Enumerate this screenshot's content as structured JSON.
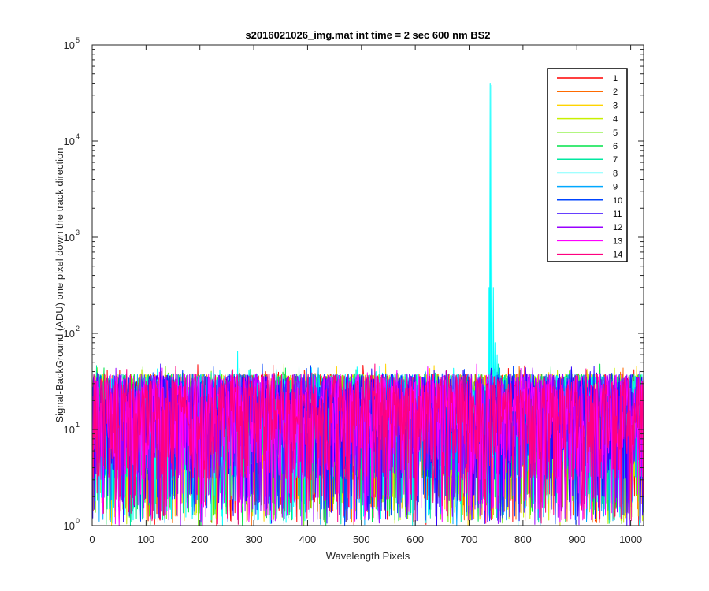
{
  "chart_data": {
    "type": "line",
    "title": "s2016021026_img.mat int time = 2 sec  600 nm BS2",
    "xlabel": "Wavelength Pixels",
    "ylabel": "Signal-BackGround (ADU) one pixel down the track direction",
    "xlim": [
      0,
      1024
    ],
    "ylim": [
      1,
      100000
    ],
    "yscale": "log",
    "grid": false,
    "legend_position": "top-right",
    "x_ticks": [
      0,
      100,
      200,
      300,
      400,
      500,
      600,
      700,
      800,
      900,
      1000
    ],
    "y_ticks": [
      1,
      10,
      100,
      1000,
      10000,
      100000
    ],
    "y_tick_labels": [
      {
        "base": "10",
        "exp": "0"
      },
      {
        "base": "10",
        "exp": "1"
      },
      {
        "base": "10",
        "exp": "2"
      },
      {
        "base": "10",
        "exp": "3"
      },
      {
        "base": "10",
        "exp": "4"
      },
      {
        "base": "10",
        "exp": "5"
      }
    ],
    "noise": {
      "min": 1,
      "max": 48
    },
    "series": [
      {
        "name": "1",
        "color": "#ff0000"
      },
      {
        "name": "2",
        "color": "#ff6a00"
      },
      {
        "name": "3",
        "color": "#ffd400"
      },
      {
        "name": "4",
        "color": "#c8f000"
      },
      {
        "name": "5",
        "color": "#66ee00"
      },
      {
        "name": "6",
        "color": "#00e34a"
      },
      {
        "name": "7",
        "color": "#00e8a0"
      },
      {
        "name": "8",
        "color": "#00ffff",
        "peaks": [
          {
            "x": 270,
            "y": 65
          },
          {
            "x": 737,
            "y": 300
          },
          {
            "x": 739,
            "y": 40000
          },
          {
            "x": 742,
            "y": 38000
          },
          {
            "x": 745,
            "y": 300
          },
          {
            "x": 748,
            "y": 80
          },
          {
            "x": 752,
            "y": 60
          }
        ]
      },
      {
        "name": "9",
        "color": "#00a8ff"
      },
      {
        "name": "10",
        "color": "#0044ff"
      },
      {
        "name": "11",
        "color": "#3300ff"
      },
      {
        "name": "12",
        "color": "#9900ff"
      },
      {
        "name": "13",
        "color": "#ff00ff"
      },
      {
        "name": "14",
        "color": "#ff0080"
      }
    ]
  }
}
